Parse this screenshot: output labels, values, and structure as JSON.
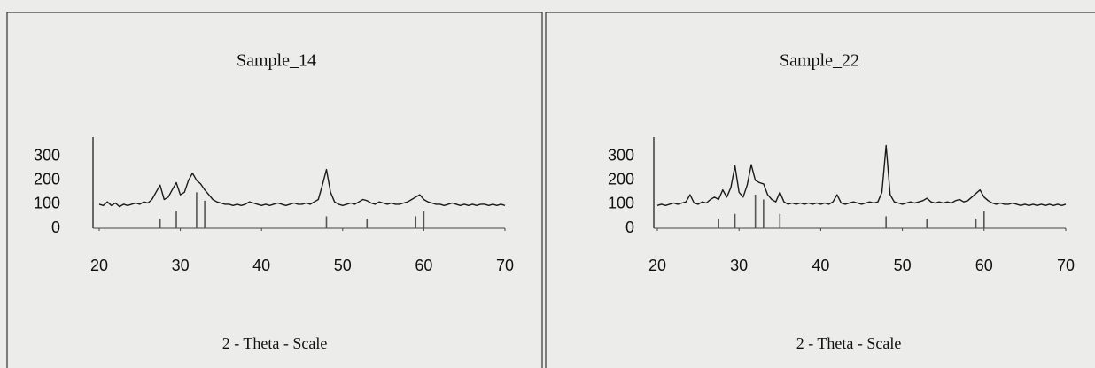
{
  "chart_data": [
    {
      "type": "line",
      "title": "Sample_14",
      "xlabel": "2 - Theta - Scale",
      "x": [
        20,
        20.5,
        21,
        21.5,
        22,
        22.5,
        23,
        23.5,
        24,
        24.5,
        25,
        25.5,
        26,
        26.5,
        27,
        27.5,
        28,
        28.5,
        29,
        29.5,
        30,
        30.5,
        31,
        31.5,
        32,
        32.5,
        33,
        33.5,
        34,
        34.5,
        35,
        35.5,
        36,
        36.5,
        37,
        37.5,
        38,
        38.5,
        39,
        39.5,
        40,
        40.5,
        41,
        41.5,
        42,
        42.5,
        43,
        43.5,
        44,
        44.5,
        45,
        45.5,
        46,
        46.5,
        47,
        47.5,
        48,
        48.5,
        49,
        49.5,
        50,
        50.5,
        51,
        51.5,
        52,
        52.5,
        53,
        53.5,
        54,
        54.5,
        55,
        55.5,
        56,
        56.5,
        57,
        57.5,
        58,
        58.5,
        59,
        59.5,
        60,
        60.5,
        61,
        61.5,
        62,
        62.5,
        63,
        63.5,
        64,
        64.5,
        65,
        65.5,
        66,
        66.5,
        67,
        67.5,
        68,
        68.5,
        69,
        69.5,
        70
      ],
      "series": [
        {
          "color": "#1a1a1a",
          "values": [
            100,
            95,
            110,
            95,
            105,
            90,
            100,
            95,
            100,
            105,
            100,
            110,
            105,
            120,
            150,
            180,
            120,
            130,
            160,
            190,
            140,
            150,
            200,
            230,
            200,
            185,
            160,
            140,
            120,
            110,
            105,
            100,
            100,
            95,
            100,
            95,
            100,
            110,
            105,
            100,
            95,
            100,
            95,
            100,
            105,
            100,
            95,
            100,
            105,
            100,
            100,
            105,
            100,
            110,
            120,
            180,
            245,
            150,
            110,
            100,
            95,
            100,
            105,
            100,
            110,
            120,
            115,
            105,
            100,
            110,
            105,
            100,
            105,
            100,
            100,
            105,
            110,
            120,
            130,
            140,
            120,
            110,
            105,
            100,
            100,
            95,
            100,
            105,
            100,
            95,
            100,
            95,
            100,
            95,
            100,
            100,
            95,
            100,
            95,
            100,
            95
          ]
        },
        {
          "color": "#555555",
          "style": "stem",
          "x": [
            27.5,
            29.5,
            32,
            33,
            48,
            53,
            59,
            60
          ],
          "values": [
            40,
            70,
            150,
            115,
            50,
            40,
            50,
            70
          ]
        }
      ],
      "xlim": [
        20,
        70
      ],
      "xticks": [
        20,
        30,
        40,
        50,
        60,
        70
      ],
      "ylim": [
        0,
        380
      ],
      "yticks": [
        0,
        100,
        200,
        300
      ]
    },
    {
      "type": "line",
      "title": "Sample_22",
      "xlabel": "2 - Theta - Scale",
      "x": [
        20,
        20.5,
        21,
        21.5,
        22,
        22.5,
        23,
        23.5,
        24,
        24.5,
        25,
        25.5,
        26,
        26.5,
        27,
        27.5,
        28,
        28.5,
        29,
        29.5,
        30,
        30.5,
        31,
        31.5,
        32,
        32.5,
        33,
        33.5,
        34,
        34.5,
        35,
        35.5,
        36,
        36.5,
        37,
        37.5,
        38,
        38.5,
        39,
        39.5,
        40,
        40.5,
        41,
        41.5,
        42,
        42.5,
        43,
        43.5,
        44,
        44.5,
        45,
        45.5,
        46,
        46.5,
        47,
        47.5,
        48,
        48.5,
        49,
        49.5,
        50,
        50.5,
        51,
        51.5,
        52,
        52.5,
        53,
        53.5,
        54,
        54.5,
        55,
        55.5,
        56,
        56.5,
        57,
        57.5,
        58,
        58.5,
        59,
        59.5,
        60,
        60.5,
        61,
        61.5,
        62,
        62.5,
        63,
        63.5,
        64,
        64.5,
        65,
        65.5,
        66,
        66.5,
        67,
        67.5,
        68,
        68.5,
        69,
        69.5,
        70
      ],
      "series": [
        {
          "color": "#1a1a1a",
          "values": [
            95,
            100,
            95,
            100,
            105,
            100,
            105,
            110,
            140,
            105,
            100,
            110,
            105,
            120,
            130,
            120,
            160,
            130,
            170,
            260,
            150,
            130,
            180,
            265,
            200,
            190,
            185,
            140,
            120,
            110,
            150,
            110,
            100,
            105,
            100,
            105,
            100,
            105,
            100,
            105,
            100,
            105,
            100,
            110,
            140,
            105,
            100,
            105,
            110,
            105,
            100,
            105,
            110,
            105,
            110,
            150,
            345,
            140,
            110,
            105,
            100,
            105,
            110,
            105,
            110,
            115,
            125,
            110,
            105,
            110,
            105,
            110,
            105,
            115,
            120,
            110,
            115,
            130,
            145,
            160,
            130,
            115,
            105,
            100,
            105,
            100,
            100,
            105,
            100,
            95,
            100,
            95,
            100,
            95,
            100,
            95,
            100,
            95,
            100,
            95,
            100
          ]
        },
        {
          "color": "#555555",
          "style": "stem",
          "x": [
            27.5,
            29.5,
            32,
            33,
            35,
            48,
            53,
            59,
            60
          ],
          "values": [
            40,
            60,
            140,
            120,
            60,
            50,
            40,
            40,
            70
          ]
        }
      ],
      "xlim": [
        20,
        70
      ],
      "xticks": [
        20,
        30,
        40,
        50,
        60,
        70
      ],
      "ylim": [
        0,
        380
      ],
      "yticks": [
        0,
        100,
        200,
        300
      ]
    }
  ]
}
